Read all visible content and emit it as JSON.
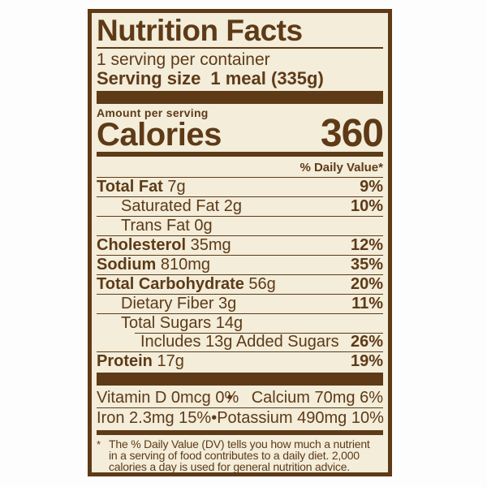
{
  "colors": {
    "brown": "#5E3A17",
    "cream": "#F3EDDA",
    "page_background": "#FDFDFD"
  },
  "label": {
    "title": "Nutrition Facts",
    "servings_per_container": "1 serving per container",
    "serving_size": {
      "label": "Serving size",
      "value": "1 meal (335g)"
    },
    "amount_per_serving": "Amount per serving",
    "calories": {
      "label": "Calories",
      "value": "360"
    },
    "daily_value_header": "% Daily Value*",
    "nutrients": [
      {
        "name": "Total Fat",
        "amount": "7g",
        "dv": "9%",
        "bold": true,
        "indent": 0,
        "rule_below": true
      },
      {
        "name": "Saturated Fat",
        "amount": "2g",
        "dv": "10%",
        "bold": false,
        "indent": 1,
        "rule_below": true
      },
      {
        "name": "Trans Fat",
        "amount": "0g",
        "dv": "",
        "bold": false,
        "indent": 1,
        "rule_below": true
      },
      {
        "name": "Cholesterol",
        "amount": "35mg",
        "dv": "12%",
        "bold": true,
        "indent": 0,
        "rule_below": true
      },
      {
        "name": "Sodium",
        "amount": "810mg",
        "dv": "35%",
        "bold": true,
        "indent": 0,
        "rule_below": true
      },
      {
        "name": "Total Carbohydrate",
        "amount": "56g",
        "dv": "20%",
        "bold": true,
        "indent": 0,
        "rule_below": true
      },
      {
        "name": "Dietary Fiber",
        "amount": "3g",
        "dv": "11%",
        "bold": false,
        "indent": 1,
        "rule_below": true
      },
      {
        "name": "Total Sugars",
        "amount": "14g",
        "dv": "",
        "bold": false,
        "indent": 1,
        "rule_below": false
      },
      {
        "name": "Includes 13g Added Sugars",
        "amount": "",
        "dv": "26%",
        "bold": false,
        "indent": 2,
        "rule_below": true,
        "rule_above_indented": true
      },
      {
        "name": "Protein",
        "amount": "17g",
        "dv": "19%",
        "bold": true,
        "indent": 0,
        "rule_below": false
      }
    ],
    "micronutrients": {
      "bullet": "•",
      "rows": [
        {
          "left": "Vitamin D 0mcg 0%",
          "right": "Calcium 70mg 6%"
        },
        {
          "left": "Iron 2.3mg 15%",
          "right": "Potassium 490mg 10%"
        }
      ]
    },
    "footnote": {
      "marker": "*",
      "lines": [
        "The % Daily Value (DV) tells you how much a nutrient",
        "in a serving of food contributes to a daily diet. 2,000",
        "calories a day is used for general nutrition advice."
      ]
    }
  }
}
